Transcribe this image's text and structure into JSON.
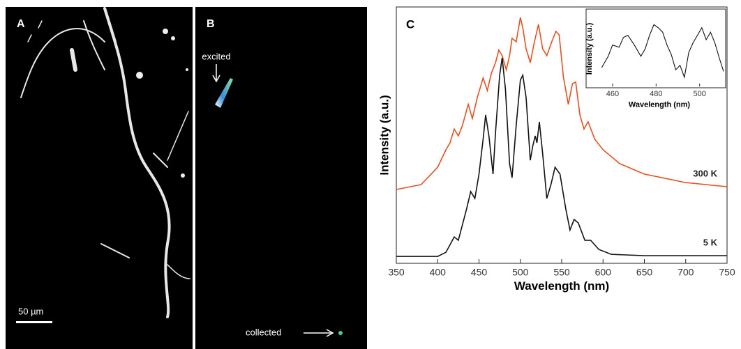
{
  "panels": {
    "a_label": "A",
    "b_label": "B",
    "excited": "excited",
    "collected": "collected",
    "scale_bar": "50 µm"
  },
  "chart_data": [
    {
      "type": "line",
      "label": "C",
      "xlabel": "Wavelength (nm)",
      "ylabel": "Intensity (a.u.)",
      "xlim": [
        350,
        750
      ],
      "ylim": [
        0,
        100
      ],
      "xticks": [
        350,
        400,
        450,
        500,
        550,
        600,
        650,
        700,
        750
      ],
      "series": [
        {
          "name": "300 K",
          "color": "#e4501f",
          "x": [
            350,
            380,
            400,
            410,
            415,
            420,
            425,
            430,
            437,
            442,
            448,
            455,
            460,
            465,
            470,
            474,
            478,
            483,
            487,
            490,
            495,
            500,
            503,
            507,
            512,
            517,
            522,
            527,
            532,
            538,
            543,
            547,
            552,
            558,
            563,
            567,
            572,
            577,
            582,
            590,
            600,
            620,
            650,
            700,
            750
          ],
          "values": [
            28.8,
            30.7,
            37.5,
            44.3,
            47.0,
            52.4,
            49.7,
            53.8,
            62.0,
            56.5,
            64.7,
            72.3,
            67.4,
            74.2,
            78.3,
            83.2,
            81.0,
            75.5,
            81.0,
            87.8,
            86.4,
            95.9,
            91.8,
            83.7,
            78.3,
            86.4,
            93.2,
            83.7,
            81.0,
            86.4,
            90.5,
            89.1,
            72.8,
            62.0,
            70.1,
            70.7,
            57.9,
            52.4,
            55.2,
            48.4,
            44.3,
            38.9,
            34.8,
            31.5,
            29.9
          ]
        },
        {
          "name": "5 K",
          "color": "#111111",
          "x": [
            350,
            400,
            410,
            420,
            425,
            435,
            440,
            445,
            450,
            455,
            458,
            462,
            467,
            470,
            475,
            478,
            482,
            487,
            490,
            495,
            500,
            503,
            507,
            512,
            515,
            518,
            520,
            523,
            527,
            532,
            537,
            542,
            548,
            555,
            560,
            565,
            570,
            578,
            585,
            595,
            610,
            650,
            700,
            750
          ],
          "values": [
            2.7,
            2.7,
            4.3,
            10.3,
            9.0,
            21.2,
            28.0,
            25.3,
            34.8,
            48.4,
            57.9,
            49.7,
            34.8,
            51.1,
            73.4,
            80.2,
            67.9,
            38.9,
            33.4,
            53.8,
            71.5,
            73.4,
            64.7,
            40.2,
            45.7,
            49.7,
            47.0,
            55.2,
            42.9,
            25.3,
            30.7,
            37.5,
            34.8,
            21.2,
            13.0,
            17.1,
            15.8,
            9.0,
            9.0,
            5.4,
            3.5,
            3.0,
            3.0,
            3.0
          ]
        }
      ]
    },
    {
      "type": "line",
      "xlabel": "Wavelength (nm)",
      "ylabel": "Intensity (a.u.)",
      "xlim": [
        452,
        511
      ],
      "ylim": [
        0,
        100
      ],
      "xticks": [
        460,
        480,
        500
      ],
      "series": [
        {
          "color": "#111111",
          "x": [
            455,
            458,
            460,
            463,
            465,
            467,
            470,
            473,
            475,
            477,
            479,
            481,
            483,
            485,
            487,
            489,
            491,
            493,
            495,
            497,
            499,
            501,
            503,
            505,
            507,
            509,
            511
          ],
          "values": [
            25,
            40,
            55,
            52,
            65,
            68,
            55,
            40,
            50,
            68,
            82,
            78,
            72,
            55,
            42,
            22,
            28,
            12,
            45,
            58,
            68,
            78,
            62,
            72,
            58,
            38,
            20
          ]
        }
      ]
    }
  ]
}
